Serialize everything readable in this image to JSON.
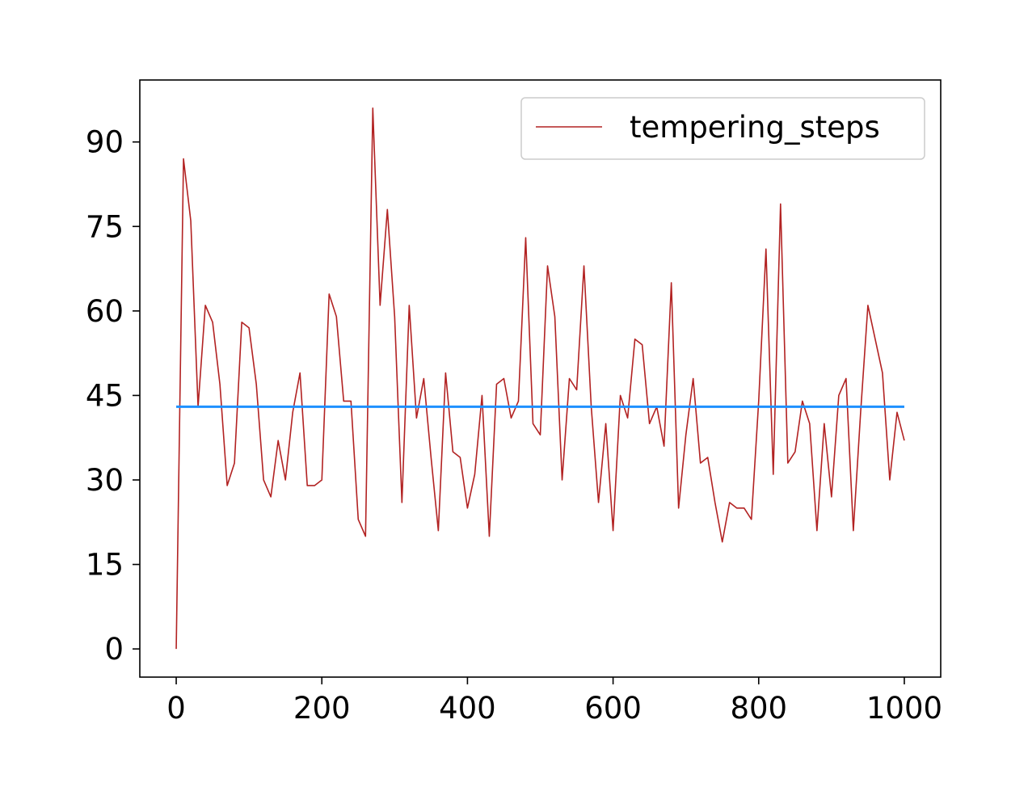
{
  "colors": {
    "series_line": "#b22222",
    "mean_line": "#1e90ff",
    "axis": "#000000",
    "legend_border": "#cccccc"
  },
  "chart_data": {
    "type": "line",
    "title": "",
    "xlabel": "",
    "ylabel": "",
    "xlim": [
      -50,
      1050
    ],
    "ylim": [
      -5,
      101
    ],
    "xticks": [
      0,
      200,
      400,
      600,
      800,
      1000
    ],
    "yticks": [
      0,
      15,
      30,
      45,
      60,
      75,
      90
    ],
    "grid": false,
    "legend_position": "top-right",
    "series": [
      {
        "name": "tempering_steps",
        "x": [
          0,
          10,
          20,
          30,
          40,
          50,
          60,
          70,
          80,
          90,
          100,
          110,
          120,
          130,
          140,
          150,
          160,
          170,
          180,
          190,
          200,
          210,
          220,
          230,
          240,
          250,
          260,
          270,
          280,
          290,
          300,
          310,
          320,
          330,
          340,
          350,
          360,
          370,
          380,
          390,
          400,
          410,
          420,
          430,
          440,
          450,
          460,
          470,
          480,
          490,
          500,
          510,
          520,
          530,
          540,
          550,
          560,
          570,
          580,
          590,
          600,
          610,
          620,
          630,
          640,
          650,
          660,
          670,
          680,
          690,
          700,
          710,
          720,
          730,
          740,
          750,
          760,
          770,
          780,
          790,
          800,
          810,
          820,
          830,
          840,
          850,
          860,
          870,
          880,
          890,
          900,
          910,
          920,
          930,
          940,
          950,
          960,
          970,
          980,
          990,
          1000
        ],
        "values": [
          0,
          87,
          76,
          43,
          61,
          58,
          47,
          29,
          33,
          58,
          57,
          47,
          30,
          27,
          37,
          30,
          42,
          49,
          29,
          29,
          30,
          63,
          59,
          44,
          44,
          23,
          20,
          96,
          61,
          78,
          59,
          26,
          61,
          41,
          48,
          34,
          21,
          49,
          35,
          34,
          25,
          31,
          45,
          20,
          47,
          48,
          41,
          44,
          73,
          40,
          38,
          68,
          59,
          30,
          48,
          46,
          68,
          43,
          26,
          40,
          21,
          45,
          41,
          55,
          54,
          40,
          43,
          36,
          65,
          25,
          38,
          48,
          33,
          34,
          26,
          19,
          26,
          25,
          25,
          23,
          44,
          71,
          31,
          79,
          33,
          35,
          44,
          40,
          21,
          40,
          27,
          45,
          48,
          21,
          42,
          61,
          55,
          49,
          30,
          42,
          37
        ]
      },
      {
        "x": [
          0,
          1000
        ],
        "values": [
          43,
          43
        ]
      }
    ]
  }
}
